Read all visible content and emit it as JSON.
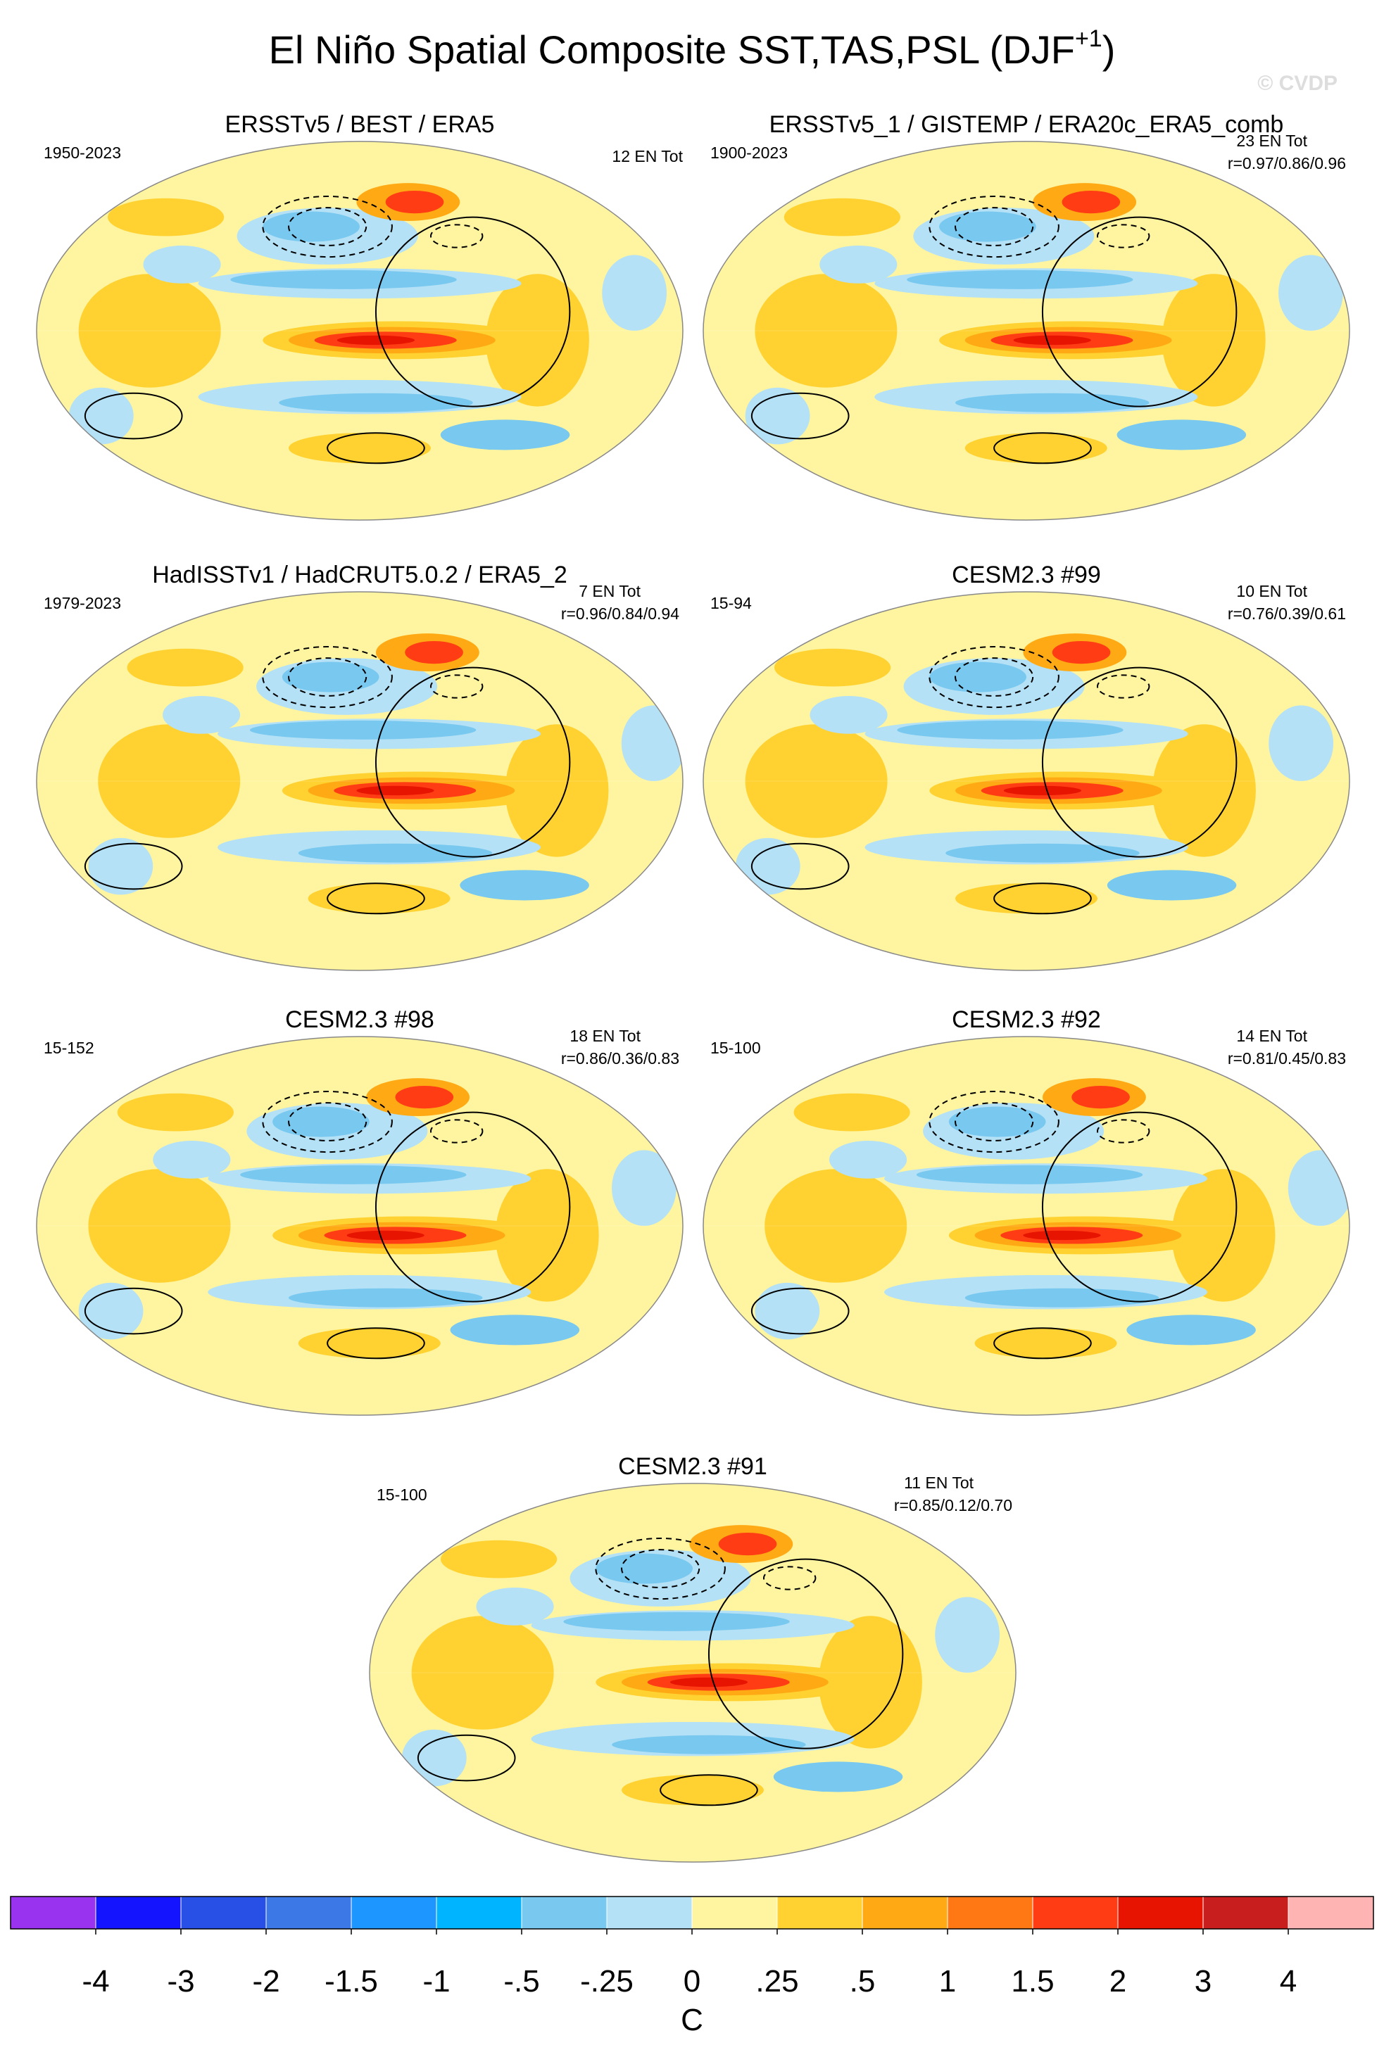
{
  "header": {
    "title": "El Niño Spatial Composite SST,TAS,PSL (DJF",
    "title_superscript": "+1",
    "title_end": ")",
    "watermark": "© CVDP"
  },
  "panels": [
    {
      "title": "ERSSTv5 / BEST / ERA5",
      "period": "1950-2023",
      "count": "12 EN Tot"
    },
    {
      "title": "ERSSTv5_1 / GISTEMP / ERA20c_ERA5_comb",
      "period": "1900-2023",
      "count": "23 EN Tot",
      "correlation": "r=0.97/0.86/0.96"
    },
    {
      "title": "HadISSTv1 / HadCRUT5.0.2 / ERA5_2",
      "period": "1979-2023",
      "count": "7 EN Tot",
      "correlation": "r=0.96/0.84/0.94"
    },
    {
      "title": "CESM2.3 #99",
      "period": "15-94",
      "count": "10 EN Tot",
      "correlation": "r=0.76/0.39/0.61"
    },
    {
      "title": "CESM2.3 #98",
      "period": "15-152",
      "count": "18 EN Tot",
      "correlation": "r=0.86/0.36/0.83"
    },
    {
      "title": "CESM2.3 #92",
      "period": "15-100",
      "count": "14 EN Tot",
      "correlation": "r=0.81/0.45/0.83"
    },
    {
      "title": "CESM2.3 #91",
      "period": "15-100",
      "count": "11 EN Tot",
      "correlation": "r=0.85/0.12/0.70"
    }
  ],
  "colorbar": {
    "colors": [
      "#9933f0",
      "#1414ff",
      "#2850e6",
      "#3c78e6",
      "#1e96ff",
      "#00b4ff",
      "#78c8f0",
      "#b4e1f5",
      "#fff5a0",
      "#ffd232",
      "#ffaa14",
      "#ff7814",
      "#ff3c14",
      "#e61400",
      "#c81e1e",
      "#ffb4b4"
    ],
    "ticks": [
      -4,
      -3,
      -2,
      -1.5,
      -1,
      {
        "value": -0.5,
        "label": "-.5"
      },
      {
        "value": -0.25,
        "label": "-.25"
      },
      0,
      {
        "value": 0.25,
        "label": ".25"
      },
      {
        "value": 0.5,
        "label": ".5"
      },
      1,
      1.5,
      2,
      3,
      4
    ],
    "unit": "C"
  }
}
